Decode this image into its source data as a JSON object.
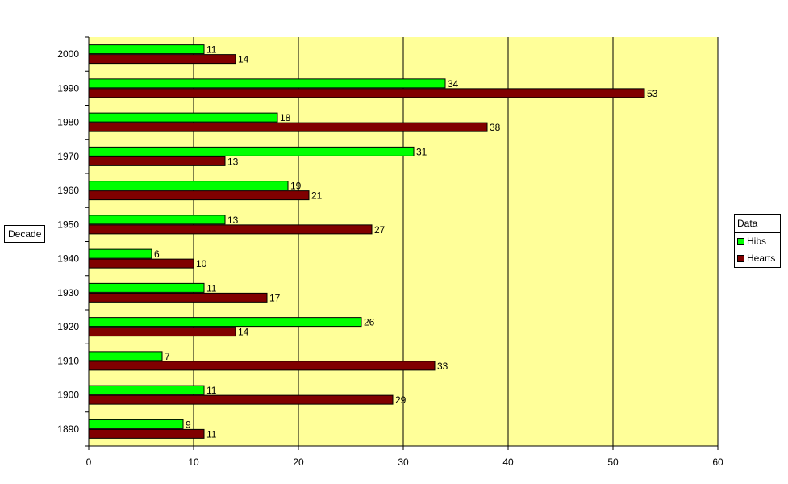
{
  "chart_data": {
    "type": "bar",
    "orientation": "horizontal",
    "title": "",
    "xlabel": "",
    "ylabel": "Decade",
    "categories": [
      "1890",
      "1900",
      "1910",
      "1920",
      "1930",
      "1940",
      "1950",
      "1960",
      "1970",
      "1980",
      "1990",
      "2000"
    ],
    "series": [
      {
        "name": "Hibs",
        "color": "#00ff00",
        "values": [
          9,
          11,
          7,
          26,
          11,
          6,
          13,
          19,
          31,
          18,
          34,
          11
        ]
      },
      {
        "name": "Hearts",
        "color": "#800000",
        "values": [
          11,
          29,
          33,
          14,
          17,
          10,
          27,
          21,
          13,
          38,
          53,
          14
        ]
      }
    ],
    "xlim": [
      0,
      60
    ],
    "xticks": [
      "0",
      "10",
      "20",
      "30",
      "40",
      "50",
      "60"
    ],
    "grid": true,
    "plot_background": "#ffff99",
    "legend": {
      "title": "Data",
      "placement": "right"
    }
  }
}
